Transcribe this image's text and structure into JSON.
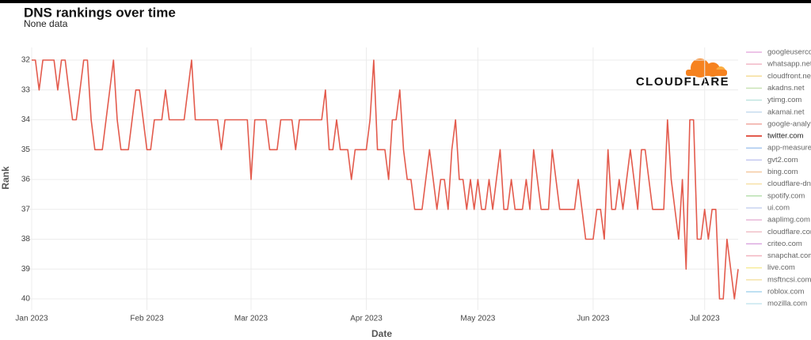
{
  "chart_data": {
    "type": "line",
    "title": "DNS rankings over time",
    "subtitle": "None data",
    "x_label": "Date",
    "y_label": "Rank",
    "logo_text": "CLOUDFLARE",
    "categories": [
      "Jan 2023",
      null,
      null,
      null,
      null,
      null,
      null,
      null,
      null,
      null,
      null,
      null,
      null,
      null,
      null,
      null,
      null,
      null,
      null,
      null,
      null,
      null,
      null,
      null,
      null,
      null,
      null,
      null,
      null,
      null,
      null,
      "Feb 2023",
      null,
      null,
      null,
      null,
      null,
      null,
      null,
      null,
      null,
      null,
      null,
      null,
      null,
      null,
      null,
      null,
      null,
      null,
      null,
      null,
      null,
      null,
      null,
      null,
      null,
      null,
      null,
      "Mar 2023",
      null,
      null,
      null,
      null,
      null,
      null,
      null,
      null,
      null,
      null,
      null,
      null,
      null,
      null,
      null,
      null,
      null,
      null,
      null,
      null,
      null,
      null,
      null,
      null,
      null,
      null,
      null,
      null,
      null,
      null,
      "Apr 2023",
      null,
      null,
      null,
      null,
      null,
      null,
      null,
      null,
      null,
      null,
      null,
      null,
      null,
      null,
      null,
      null,
      null,
      null,
      null,
      null,
      null,
      null,
      null,
      null,
      null,
      null,
      null,
      null,
      null,
      "May 2023",
      null,
      null,
      null,
      null,
      null,
      null,
      null,
      null,
      null,
      null,
      null,
      null,
      null,
      null,
      null,
      null,
      null,
      null,
      null,
      null,
      null,
      null,
      null,
      null,
      null,
      null,
      null,
      null,
      null,
      null,
      "Jun 2023",
      null,
      null,
      null,
      null,
      null,
      null,
      null,
      null,
      null,
      null,
      null,
      null,
      null,
      null,
      null,
      null,
      null,
      null,
      null,
      null,
      null,
      null,
      null,
      null,
      null,
      null,
      null,
      null,
      null,
      "Jul 2023",
      null,
      null,
      null,
      null,
      null,
      null,
      null,
      null,
      null
    ],
    "series": [
      {
        "name": "googleusercon",
        "color": "#e7b0e0"
      },
      {
        "name": "whatsapp.net",
        "color": "#f2b8c6"
      },
      {
        "name": "cloudfront.net",
        "color": "#f5dd9a"
      },
      {
        "name": "akadns.net",
        "color": "#c9e3b5"
      },
      {
        "name": "ytimg.com",
        "color": "#bfe4e0"
      },
      {
        "name": "akamai.net",
        "color": "#c7dcef"
      },
      {
        "name": "google-analyti",
        "color": "#f0a8a0"
      },
      {
        "name": "twitter.com",
        "color": "#e35b4d",
        "values": [
          32,
          32,
          33,
          32,
          32,
          32,
          32,
          33,
          32,
          32,
          33,
          34,
          34,
          33,
          32,
          32,
          34,
          35,
          35,
          35,
          34,
          33,
          32,
          34,
          35,
          35,
          35,
          34,
          33,
          33,
          34,
          35,
          35,
          34,
          34,
          34,
          33,
          34,
          34,
          34,
          34,
          34,
          33,
          32,
          34,
          34,
          34,
          34,
          34,
          34,
          34,
          35,
          34,
          34,
          34,
          34,
          34,
          34,
          34,
          36,
          34,
          34,
          34,
          34,
          35,
          35,
          35,
          34,
          34,
          34,
          34,
          35,
          34,
          34,
          34,
          34,
          34,
          34,
          34,
          33,
          35,
          35,
          34,
          35,
          35,
          35,
          36,
          35,
          35,
          35,
          35,
          34,
          32,
          35,
          35,
          35,
          36,
          34,
          34,
          33,
          35,
          36,
          36,
          37,
          37,
          37,
          36,
          35,
          36,
          37,
          36,
          36,
          37,
          35,
          34,
          36,
          36,
          37,
          36,
          37,
          36,
          37,
          37,
          36,
          37,
          36,
          35,
          37,
          37,
          36,
          37,
          37,
          37,
          36,
          37,
          35,
          36,
          37,
          37,
          37,
          35,
          36,
          37,
          37,
          37,
          37,
          37,
          36,
          37,
          38,
          38,
          38,
          37,
          37,
          38,
          35,
          37,
          37,
          36,
          37,
          36,
          35,
          36,
          37,
          35,
          35,
          36,
          37,
          37,
          37,
          37,
          34,
          36,
          37,
          38,
          36,
          39,
          34,
          34,
          38,
          38,
          37,
          38,
          37,
          37,
          40,
          40,
          38,
          39,
          40,
          39
        ]
      },
      {
        "name": "app-measurer",
        "color": "#a9c8ef"
      },
      {
        "name": "gvt2.com",
        "color": "#c4c8f0"
      },
      {
        "name": "bing.com",
        "color": "#f5c9a0"
      },
      {
        "name": "cloudflare-dns",
        "color": "#f7e0a8"
      },
      {
        "name": "spotify.com",
        "color": "#b9e0b0"
      },
      {
        "name": "ui.com",
        "color": "#c9d4f0"
      },
      {
        "name": "aaplimg.com",
        "color": "#e8b7d8"
      },
      {
        "name": "cloudflare.com",
        "color": "#f0c0c8"
      },
      {
        "name": "criteo.com",
        "color": "#dca9e0"
      },
      {
        "name": "snapchat.com",
        "color": "#f2b4c0"
      },
      {
        "name": "live.com",
        "color": "#f7ec9c"
      },
      {
        "name": "msftncsi.com",
        "color": "#f5e3a8"
      },
      {
        "name": "roblox.com",
        "color": "#a9d6ee"
      },
      {
        "name": "mozilla.com",
        "color": "#c8e6ef"
      }
    ],
    "ylim": [
      40,
      32
    ],
    "yticks": [
      32,
      33,
      34,
      35,
      36,
      37,
      38,
      39,
      40
    ],
    "grid": true
  }
}
